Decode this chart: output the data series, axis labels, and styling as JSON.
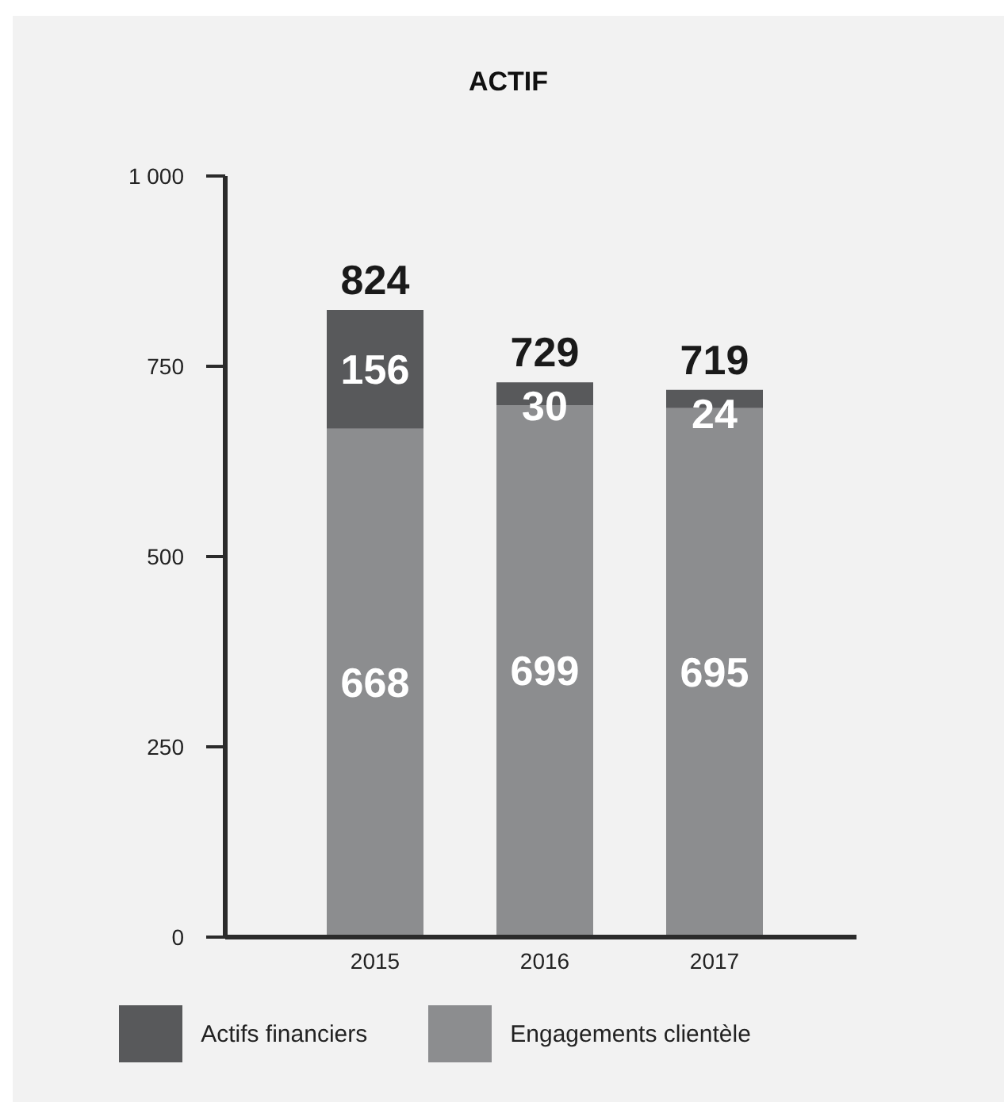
{
  "chart_data": {
    "type": "bar",
    "title": "ACTIF",
    "stacked": true,
    "data_labels": true,
    "categories": [
      "2015",
      "2016",
      "2017"
    ],
    "series": [
      {
        "name": "Engagements clientèle",
        "color": "#8c8d8f",
        "values": [
          668,
          699,
          695
        ]
      },
      {
        "name": "Actifs financiers",
        "color": "#58595b",
        "values": [
          156,
          30,
          24
        ]
      }
    ],
    "totals": [
      "824",
      "729",
      "719"
    ],
    "ylim": [
      0,
      1000
    ],
    "yticks": [
      0,
      250,
      500,
      750,
      {
        "value": 1000,
        "label": "1 000"
      }
    ],
    "grid": false,
    "legend": "bottom"
  }
}
